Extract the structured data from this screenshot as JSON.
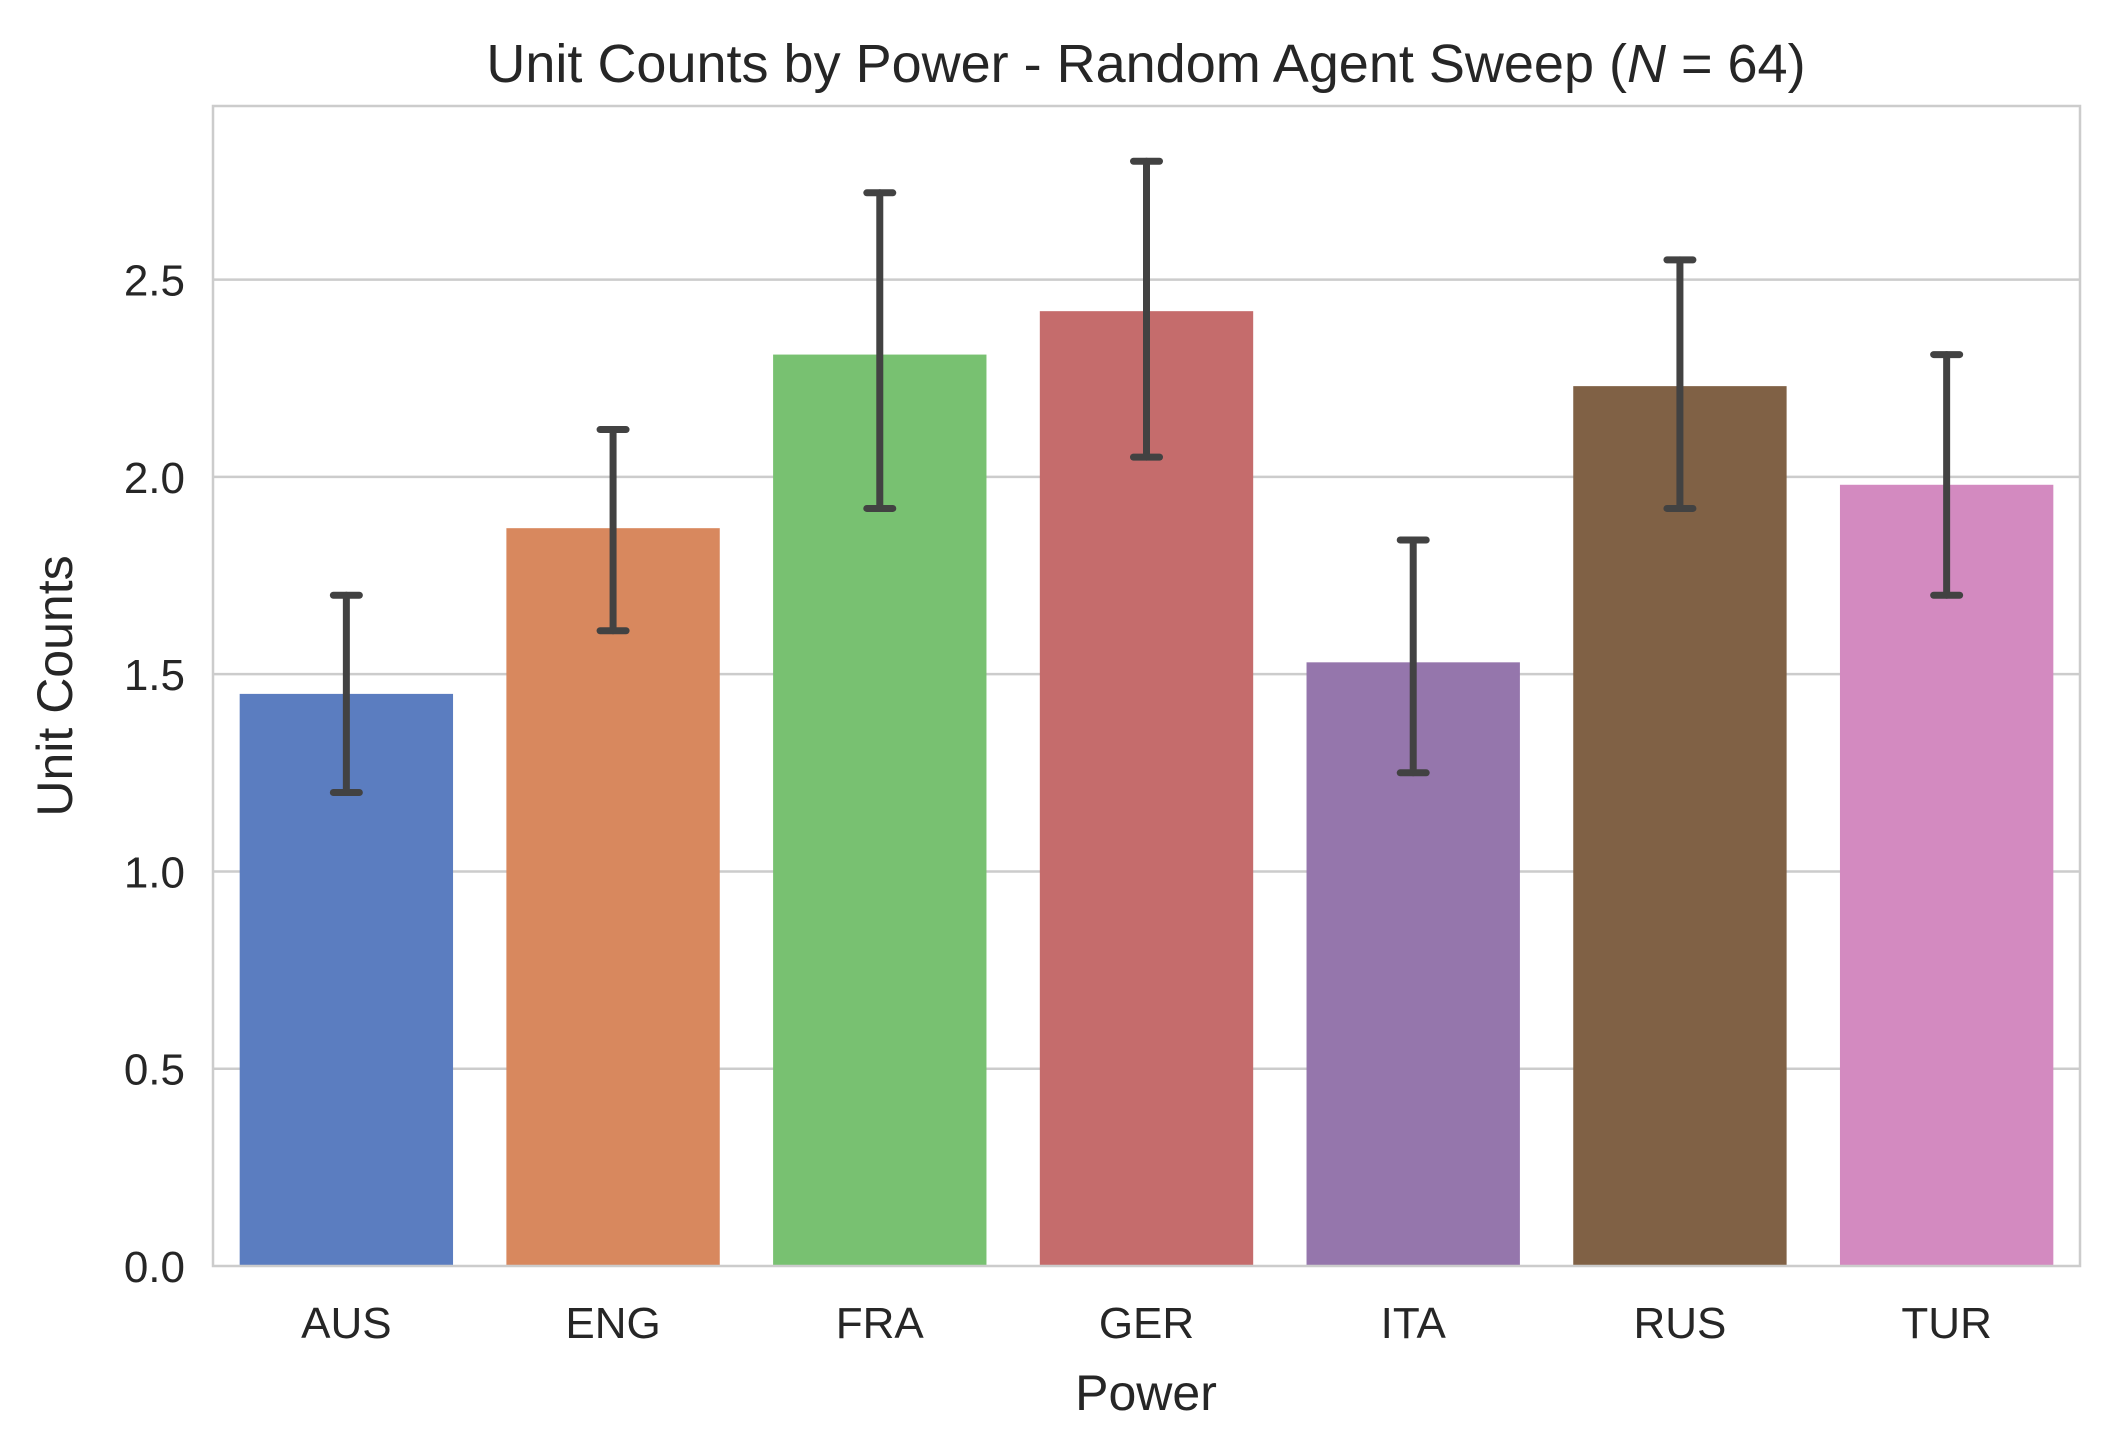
{
  "chart_data": {
    "type": "bar",
    "title_prefix": "Unit Counts by Power - Random Agent Sweep (",
    "title_var": "N",
    "title_eq": " = 64)",
    "xlabel": "Power",
    "ylabel": "Unit Counts",
    "categories": [
      "AUS",
      "ENG",
      "FRA",
      "GER",
      "ITA",
      "RUS",
      "TUR"
    ],
    "values": [
      1.45,
      1.87,
      2.31,
      2.42,
      1.53,
      2.23,
      1.98
    ],
    "ci_low": [
      1.2,
      1.61,
      1.92,
      2.05,
      1.25,
      1.92,
      1.7
    ],
    "ci_high": [
      1.7,
      2.12,
      2.72,
      2.8,
      1.84,
      2.55,
      2.31
    ],
    "colors": [
      "#5b7dc0",
      "#d8885e",
      "#78c171",
      "#c56c6c",
      "#9576ac",
      "#806145",
      "#d38ac0"
    ],
    "errorbar_color": "#424242",
    "yticks": [
      "0.0",
      "0.5",
      "1.0",
      "1.5",
      "2.0",
      "2.5"
    ],
    "ytick_values": [
      0,
      0.5,
      1.0,
      1.5,
      2.0,
      2.5
    ],
    "ylim": [
      0,
      2.94
    ],
    "grid": "horizontal",
    "legend": "none"
  }
}
